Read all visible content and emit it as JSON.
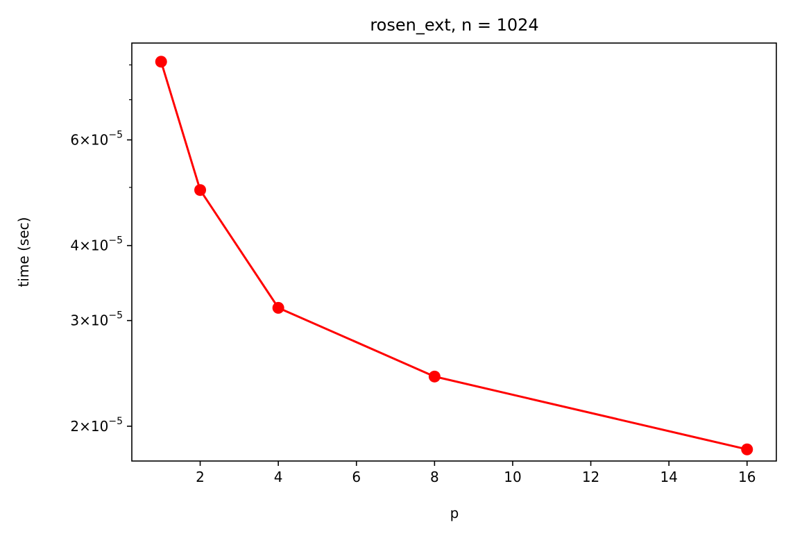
{
  "chart_data": {
    "type": "line",
    "title": "rosen_ext, n = 1024",
    "xlabel": "p",
    "ylabel": "time (sec)",
    "x_scale": "linear",
    "y_scale": "log",
    "xlim": [
      0.25,
      16.75
    ],
    "ylim": [
      1.75e-05,
      8.7e-05
    ],
    "grid": false,
    "legend": "none",
    "x_ticks": [
      2,
      4,
      6,
      8,
      10,
      12,
      14,
      16
    ],
    "y_ticks": [
      {
        "value": 2e-05,
        "mantissa": "2",
        "base": "10",
        "exponent": "−5"
      },
      {
        "value": 3e-05,
        "mantissa": "3",
        "base": "10",
        "exponent": "−5"
      },
      {
        "value": 4e-05,
        "mantissa": "4",
        "base": "10",
        "exponent": "−5"
      },
      {
        "value": 6e-05,
        "mantissa": "6",
        "base": "10",
        "exponent": "−5"
      }
    ],
    "y_minor_ticks": [
      5e-05,
      7e-05,
      8e-05
    ],
    "series": [
      {
        "color": "#ff0000",
        "marker": "circle",
        "x": [
          1,
          2,
          4,
          8,
          16
        ],
        "y": [
          8.1e-05,
          4.95e-05,
          3.15e-05,
          2.42e-05,
          1.83e-05
        ]
      }
    ]
  }
}
